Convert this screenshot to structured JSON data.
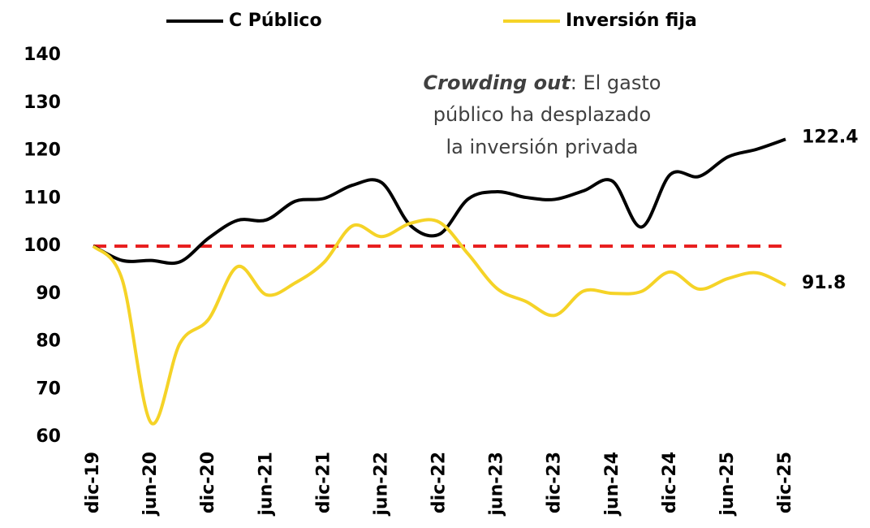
{
  "chart_data": {
    "type": "line",
    "categories": [
      "dic-19",
      null,
      "jun-20",
      null,
      "dic-20",
      null,
      "jun-21",
      null,
      "dic-21",
      null,
      "jun-22",
      null,
      "dic-22",
      null,
      "jun-23",
      null,
      "dic-23",
      null,
      "jun-24",
      null,
      "dic-24",
      null,
      "jun-25",
      null,
      "dic-25"
    ],
    "series": [
      {
        "name": "C Público",
        "color": "#000000",
        "values": [
          100,
          97,
          97,
          96.7,
          101.7,
          105.4,
          105.5,
          109.4,
          110,
          112.8,
          113.3,
          104.3,
          102.5,
          109.9,
          111.4,
          110.2,
          109.8,
          111.6,
          113.6,
          104,
          115,
          114.6,
          118.7,
          120.3,
          122.4
        ]
      },
      {
        "name": "Inversión fija",
        "color": "#f5d327",
        "values": [
          100,
          93,
          63,
          79.6,
          84.7,
          95.7,
          89.8,
          92.3,
          96.6,
          104.3,
          102,
          104.8,
          105,
          98.3,
          91.1,
          88.4,
          85.5,
          90.6,
          90.1,
          90.5,
          94.6,
          91,
          93.2,
          94.4,
          91.8
        ]
      }
    ],
    "end_label_colors": [
      "#000000",
      "#d4b000"
    ],
    "reference_line": {
      "value": 100,
      "color": "#e82020"
    },
    "ylim": [
      60,
      140
    ],
    "yticks": [
      60,
      70,
      80,
      90,
      100,
      110,
      120,
      130,
      140
    ],
    "legend": "top",
    "annotation_emphasis": "Crowding out",
    "annotation_lines": [
      ": El gasto",
      "público ha desplazado",
      "la inversión privada"
    ]
  }
}
